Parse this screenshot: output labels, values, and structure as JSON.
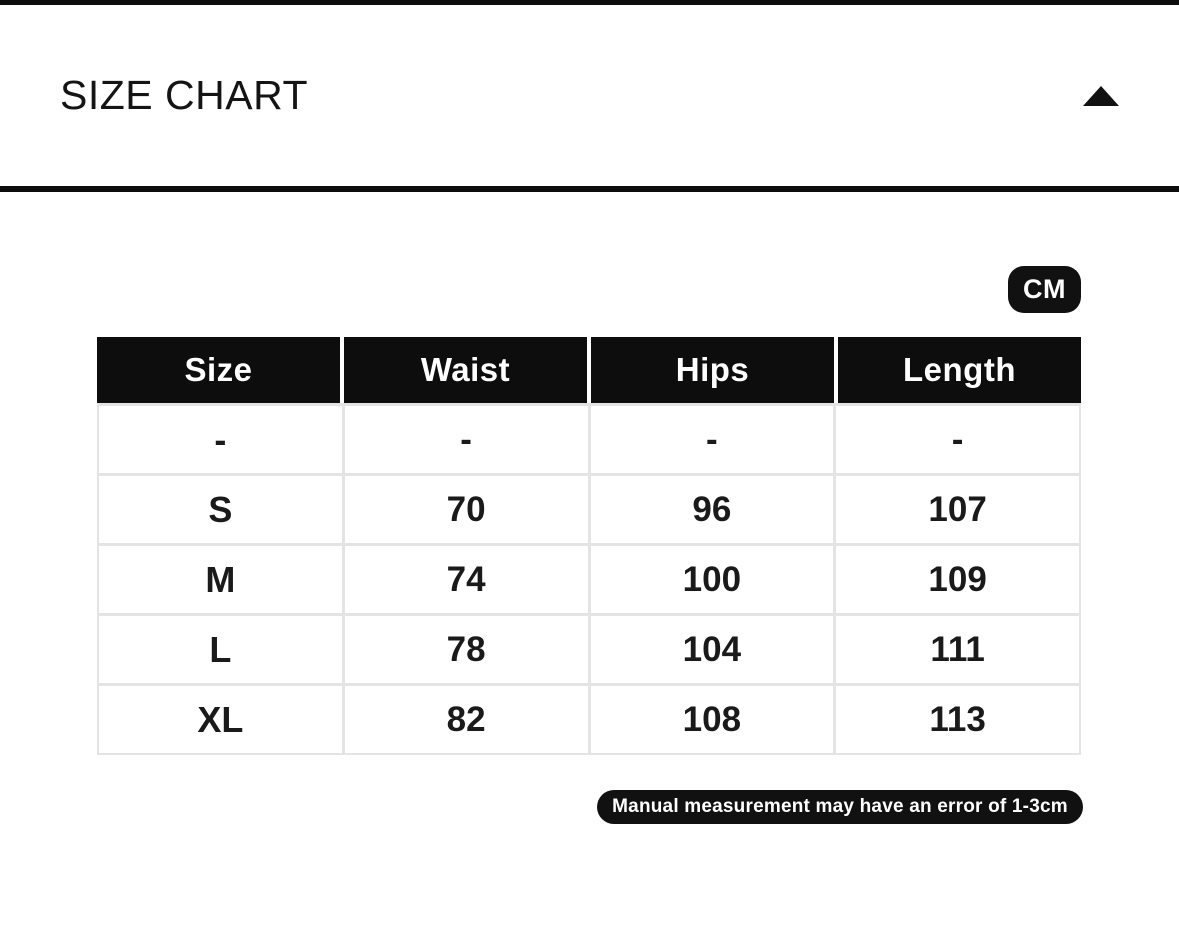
{
  "page": {
    "title": "SIZE CHART",
    "unit_badge_label": "CM",
    "footnote": "Manual measurement may have an error of 1-3cm"
  },
  "icons": {
    "collapse": "triangle-up-icon"
  },
  "colors": {
    "primary_black": "#111111",
    "grid_line": "#e4e4e4",
    "background": "#ffffff",
    "header_text": "#ffffff"
  },
  "size_table": {
    "unit": "CM",
    "headers": [
      "Size",
      "Waist",
      "Hips",
      "Length"
    ],
    "rows": [
      [
        "-",
        "-",
        "-",
        "-"
      ],
      [
        "S",
        "70",
        "96",
        "107"
      ],
      [
        "M",
        "74",
        "100",
        "109"
      ],
      [
        "L",
        "78",
        "104",
        "111"
      ],
      [
        "XL",
        "82",
        "108",
        "113"
      ]
    ]
  }
}
